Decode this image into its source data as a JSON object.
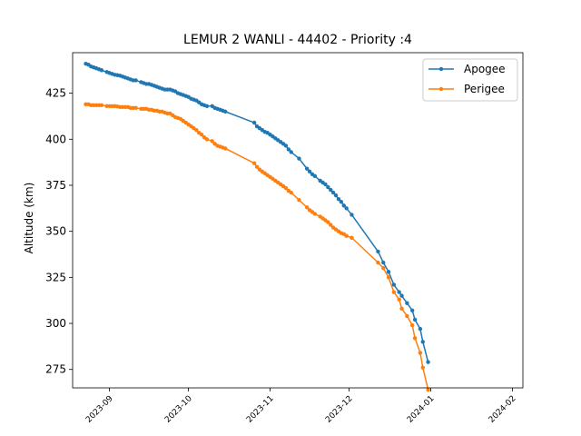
{
  "chart_data": {
    "type": "line",
    "title": "LEMUR 2 WANLI - 44402 - Priority :4",
    "xlabel": "",
    "ylabel": "Altitude (km)",
    "x_axis_type": "date",
    "xlim": [
      "2023-08-18",
      "2024-02-05"
    ],
    "ylim": [
      265,
      447
    ],
    "xticks": [
      "2023-09",
      "2023-10",
      "2023-11",
      "2023-12",
      "2024-01",
      "2024-02"
    ],
    "yticks": [
      275,
      300,
      325,
      350,
      375,
      400,
      425
    ],
    "grid": false,
    "legend_position": "top-right",
    "series": [
      {
        "name": "Apogee",
        "color": "#1f77b4",
        "points": [
          [
            "2023-08-23",
            441
          ],
          [
            "2023-08-24",
            440.5
          ],
          [
            "2023-08-25",
            439.5
          ],
          [
            "2023-08-26",
            439
          ],
          [
            "2023-08-27",
            438.5
          ],
          [
            "2023-08-28",
            438
          ],
          [
            "2023-08-29",
            437.5
          ],
          [
            "2023-08-31",
            436.5
          ],
          [
            "2023-09-01",
            436
          ],
          [
            "2023-09-02",
            435.5
          ],
          [
            "2023-09-03",
            435
          ],
          [
            "2023-09-04",
            434.8
          ],
          [
            "2023-09-05",
            434.5
          ],
          [
            "2023-09-06",
            434
          ],
          [
            "2023-09-07",
            433.5
          ],
          [
            "2023-09-08",
            433
          ],
          [
            "2023-09-09",
            432.5
          ],
          [
            "2023-09-10",
            432
          ],
          [
            "2023-09-11",
            432
          ],
          [
            "2023-09-13",
            431
          ],
          [
            "2023-09-14",
            430.5
          ],
          [
            "2023-09-15",
            430
          ],
          [
            "2023-09-16",
            430
          ],
          [
            "2023-09-17",
            429.5
          ],
          [
            "2023-09-18",
            429
          ],
          [
            "2023-09-19",
            428.5
          ],
          [
            "2023-09-20",
            428
          ],
          [
            "2023-09-21",
            427.5
          ],
          [
            "2023-09-22",
            427
          ],
          [
            "2023-09-23",
            427
          ],
          [
            "2023-09-24",
            427
          ],
          [
            "2023-09-25",
            426.5
          ],
          [
            "2023-09-26",
            426
          ],
          [
            "2023-09-27",
            425
          ],
          [
            "2023-09-28",
            424.5
          ],
          [
            "2023-09-29",
            424
          ],
          [
            "2023-09-30",
            423.5
          ],
          [
            "2023-10-01",
            423
          ],
          [
            "2023-10-02",
            422
          ],
          [
            "2023-10-03",
            421.5
          ],
          [
            "2023-10-04",
            421
          ],
          [
            "2023-10-05",
            420
          ],
          [
            "2023-10-06",
            419
          ],
          [
            "2023-10-07",
            418.5
          ],
          [
            "2023-10-08",
            418
          ],
          [
            "2023-10-10",
            418
          ],
          [
            "2023-10-11",
            417
          ],
          [
            "2023-10-12",
            416.5
          ],
          [
            "2023-10-13",
            416
          ],
          [
            "2023-10-14",
            415.5
          ],
          [
            "2023-10-15",
            415
          ],
          [
            "2023-10-26",
            409
          ],
          [
            "2023-10-27",
            407
          ],
          [
            "2023-10-28",
            406
          ],
          [
            "2023-10-29",
            405
          ],
          [
            "2023-10-30",
            404
          ],
          [
            "2023-10-31",
            403.5
          ],
          [
            "2023-11-01",
            402.5
          ],
          [
            "2023-11-02",
            401.5
          ],
          [
            "2023-11-03",
            400.5
          ],
          [
            "2023-11-04",
            399.5
          ],
          [
            "2023-11-05",
            398.5
          ],
          [
            "2023-11-06",
            397.5
          ],
          [
            "2023-11-07",
            396.5
          ],
          [
            "2023-11-08",
            394.5
          ],
          [
            "2023-11-09",
            393
          ],
          [
            "2023-11-12",
            389.5
          ],
          [
            "2023-11-15",
            384
          ],
          [
            "2023-11-16",
            382.5
          ],
          [
            "2023-11-17",
            381
          ],
          [
            "2023-11-18",
            380
          ],
          [
            "2023-11-20",
            377.5
          ],
          [
            "2023-11-21",
            376.5
          ],
          [
            "2023-11-22",
            375.5
          ],
          [
            "2023-11-23",
            374
          ],
          [
            "2023-11-24",
            372.5
          ],
          [
            "2023-11-25",
            371
          ],
          [
            "2023-11-26",
            369.5
          ],
          [
            "2023-11-27",
            367.5
          ],
          [
            "2023-11-28",
            366
          ],
          [
            "2023-11-29",
            364
          ],
          [
            "2023-11-30",
            362.5
          ],
          [
            "2023-12-02",
            359
          ],
          [
            "2023-12-12",
            339
          ],
          [
            "2023-12-14",
            333
          ],
          [
            "2023-12-16",
            328
          ],
          [
            "2023-12-18",
            321
          ],
          [
            "2023-12-20",
            317
          ],
          [
            "2023-12-21",
            315
          ],
          [
            "2023-12-23",
            311
          ],
          [
            "2023-12-25",
            307
          ],
          [
            "2023-12-26",
            302
          ],
          [
            "2023-12-28",
            297
          ],
          [
            "2023-12-29",
            290
          ],
          [
            "2023-12-31",
            279
          ]
        ]
      },
      {
        "name": "Perigee",
        "color": "#ff7f0e",
        "points": [
          [
            "2023-08-23",
            419
          ],
          [
            "2023-08-24",
            419
          ],
          [
            "2023-08-25",
            418.5
          ],
          [
            "2023-08-26",
            418.5
          ],
          [
            "2023-08-27",
            418.5
          ],
          [
            "2023-08-28",
            418.5
          ],
          [
            "2023-08-29",
            418.5
          ],
          [
            "2023-08-31",
            418
          ],
          [
            "2023-09-01",
            418
          ],
          [
            "2023-09-02",
            418
          ],
          [
            "2023-09-03",
            418
          ],
          [
            "2023-09-04",
            417.8
          ],
          [
            "2023-09-05",
            417.5
          ],
          [
            "2023-09-06",
            417.5
          ],
          [
            "2023-09-07",
            417.5
          ],
          [
            "2023-09-08",
            417.5
          ],
          [
            "2023-09-09",
            417
          ],
          [
            "2023-09-10",
            417
          ],
          [
            "2023-09-11",
            417
          ],
          [
            "2023-09-13",
            416.5
          ],
          [
            "2023-09-14",
            416.5
          ],
          [
            "2023-09-15",
            416.5
          ],
          [
            "2023-09-16",
            416
          ],
          [
            "2023-09-17",
            416
          ],
          [
            "2023-09-18",
            415.5
          ],
          [
            "2023-09-19",
            415.5
          ],
          [
            "2023-09-20",
            415
          ],
          [
            "2023-09-21",
            415
          ],
          [
            "2023-09-22",
            414.5
          ],
          [
            "2023-09-23",
            414
          ],
          [
            "2023-09-24",
            414
          ],
          [
            "2023-09-25",
            413
          ],
          [
            "2023-09-26",
            412
          ],
          [
            "2023-09-27",
            411.5
          ],
          [
            "2023-09-28",
            411
          ],
          [
            "2023-09-29",
            410
          ],
          [
            "2023-09-30",
            409
          ],
          [
            "2023-10-01",
            408
          ],
          [
            "2023-10-02",
            407
          ],
          [
            "2023-10-03",
            406
          ],
          [
            "2023-10-04",
            405
          ],
          [
            "2023-10-05",
            403.5
          ],
          [
            "2023-10-06",
            402.5
          ],
          [
            "2023-10-07",
            401
          ],
          [
            "2023-10-08",
            400
          ],
          [
            "2023-10-10",
            399
          ],
          [
            "2023-10-11",
            397.5
          ],
          [
            "2023-10-12",
            396.5
          ],
          [
            "2023-10-13",
            396
          ],
          [
            "2023-10-14",
            395.5
          ],
          [
            "2023-10-15",
            395
          ],
          [
            "2023-10-26",
            387
          ],
          [
            "2023-10-27",
            385
          ],
          [
            "2023-10-28",
            383.5
          ],
          [
            "2023-10-29",
            382.5
          ],
          [
            "2023-10-30",
            381.5
          ],
          [
            "2023-10-31",
            380.5
          ],
          [
            "2023-11-01",
            379.5
          ],
          [
            "2023-11-02",
            378.5
          ],
          [
            "2023-11-03",
            377.5
          ],
          [
            "2023-11-04",
            376.5
          ],
          [
            "2023-11-05",
            375.5
          ],
          [
            "2023-11-06",
            374.5
          ],
          [
            "2023-11-07",
            373.5
          ],
          [
            "2023-11-08",
            372
          ],
          [
            "2023-11-09",
            371
          ],
          [
            "2023-11-12",
            367
          ],
          [
            "2023-11-15",
            363
          ],
          [
            "2023-11-16",
            361.5
          ],
          [
            "2023-11-17",
            360.5
          ],
          [
            "2023-11-18",
            359.5
          ],
          [
            "2023-11-20",
            358
          ],
          [
            "2023-11-21",
            357
          ],
          [
            "2023-11-22",
            356
          ],
          [
            "2023-11-23",
            355
          ],
          [
            "2023-11-24",
            353.5
          ],
          [
            "2023-11-25",
            352
          ],
          [
            "2023-11-26",
            351
          ],
          [
            "2023-11-27",
            350
          ],
          [
            "2023-11-28",
            349
          ],
          [
            "2023-11-29",
            348.5
          ],
          [
            "2023-11-30",
            347.5
          ],
          [
            "2023-12-02",
            346.5
          ],
          [
            "2023-12-12",
            333
          ],
          [
            "2023-12-14",
            330
          ],
          [
            "2023-12-16",
            325
          ],
          [
            "2023-12-18",
            317
          ],
          [
            "2023-12-20",
            313
          ],
          [
            "2023-12-21",
            308
          ],
          [
            "2023-12-23",
            304
          ],
          [
            "2023-12-25",
            299
          ],
          [
            "2023-12-26",
            292
          ],
          [
            "2023-12-28",
            284
          ],
          [
            "2023-12-29",
            276
          ],
          [
            "2023-12-31",
            264
          ]
        ]
      }
    ]
  }
}
